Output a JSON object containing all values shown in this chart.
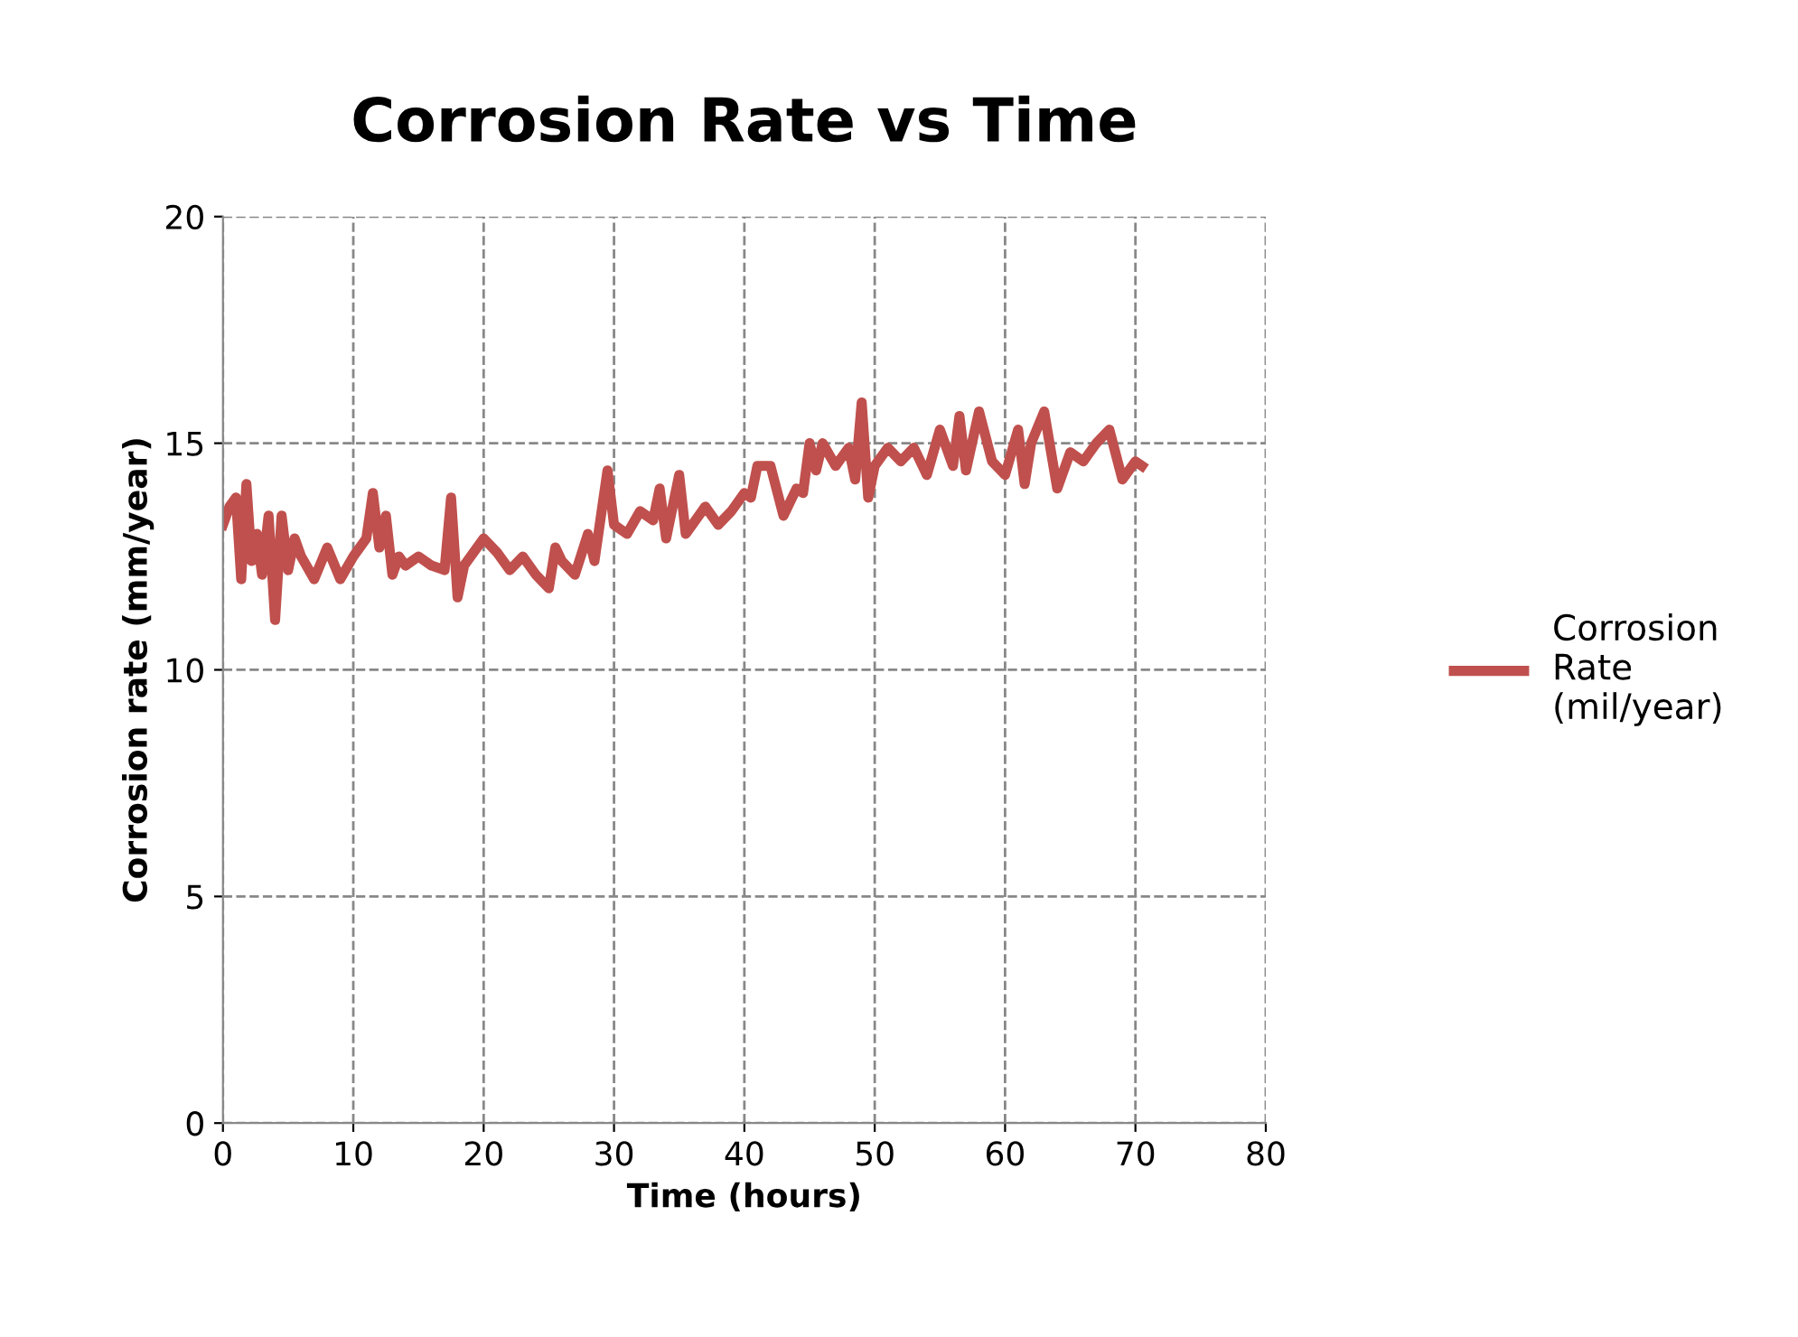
{
  "chart_data": {
    "type": "line",
    "title": "Corrosion Rate vs Time",
    "xlabel": "Time (hours)",
    "ylabel": "Corrosion rate (mm/year)",
    "xlim": [
      0,
      80
    ],
    "ylim": [
      0,
      20
    ],
    "xticks": [
      0,
      10,
      20,
      30,
      40,
      50,
      60,
      70,
      80
    ],
    "yticks": [
      0,
      5,
      10,
      15,
      20
    ],
    "grid": true,
    "legend": "right",
    "series": [
      {
        "name": "Corrosion Rate (mil/year)",
        "color": "#c0504d",
        "x": [
          0,
          0.5,
          1,
          1.4,
          1.8,
          2.2,
          2.6,
          3,
          3.5,
          4,
          4.5,
          5,
          5.5,
          6,
          7,
          8,
          9,
          10,
          11,
          11.5,
          12,
          12.5,
          13,
          13.5,
          14,
          15,
          16,
          17,
          17.5,
          18,
          18.5,
          19,
          20,
          21,
          22,
          23,
          24,
          25,
          25.5,
          26,
          27,
          28,
          28.5,
          29.5,
          30,
          31,
          32,
          33,
          33.5,
          34,
          35,
          35.5,
          36,
          37,
          38,
          39,
          40,
          40.5,
          41,
          42,
          43,
          44,
          44.5,
          45,
          45.5,
          46,
          47,
          48,
          48.5,
          49,
          49.5,
          50,
          51,
          52,
          53,
          54,
          55,
          56,
          56.5,
          57,
          58,
          59,
          60,
          61,
          61.5,
          62,
          63,
          64,
          65,
          66,
          67,
          68,
          69,
          70,
          70.5
        ],
        "values": [
          13.2,
          13.6,
          13.8,
          12.0,
          14.1,
          12.4,
          13.0,
          12.1,
          13.4,
          11.1,
          13.4,
          12.2,
          12.9,
          12.5,
          12.0,
          12.7,
          12.0,
          12.5,
          12.9,
          13.9,
          12.7,
          13.4,
          12.1,
          12.5,
          12.3,
          12.5,
          12.3,
          12.2,
          13.8,
          11.6,
          12.3,
          12.5,
          12.9,
          12.6,
          12.2,
          12.5,
          12.1,
          11.8,
          12.7,
          12.4,
          12.1,
          13.0,
          12.4,
          14.4,
          13.2,
          13.0,
          13.5,
          13.3,
          14.0,
          12.9,
          14.3,
          13.0,
          13.2,
          13.6,
          13.2,
          13.5,
          13.9,
          13.8,
          14.5,
          14.5,
          13.4,
          14.0,
          13.9,
          15.0,
          14.4,
          15.0,
          14.5,
          14.9,
          14.2,
          15.9,
          13.8,
          14.5,
          14.9,
          14.6,
          14.9,
          14.3,
          15.3,
          14.5,
          15.6,
          14.4,
          15.7,
          14.6,
          14.3,
          15.3,
          14.1,
          15.0,
          15.7,
          14.0,
          14.8,
          14.6,
          15.0,
          15.3,
          14.2,
          14.6,
          14.5
        ]
      }
    ]
  }
}
